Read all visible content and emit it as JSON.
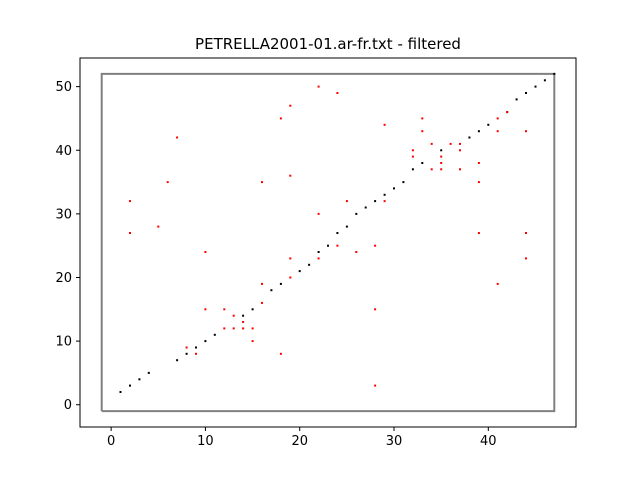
{
  "chart_data": {
    "type": "scatter",
    "title": "PETRELLA2001-01.ar-fr.txt - filtered",
    "xlabel": "",
    "ylabel": "",
    "xlim": [
      -3.3,
      49.3
    ],
    "ylim": [
      -3.5,
      54.5
    ],
    "xticks": [
      0,
      10,
      20,
      30,
      40
    ],
    "yticks": [
      0,
      10,
      20,
      30,
      40,
      50
    ],
    "grid": false,
    "legend": "none",
    "box": {
      "x": [
        -1,
        47
      ],
      "y": [
        -1,
        52
      ],
      "color": "#808080"
    },
    "series": [
      {
        "color": "#000000",
        "points": [
          [
            1,
            2
          ],
          [
            2,
            3
          ],
          [
            3,
            4
          ],
          [
            4,
            5
          ],
          [
            7,
            7
          ],
          [
            8,
            8
          ],
          [
            9,
            9
          ],
          [
            10,
            10
          ],
          [
            11,
            11
          ],
          [
            14,
            14
          ],
          [
            15,
            15
          ],
          [
            17,
            18
          ],
          [
            18,
            19
          ],
          [
            20,
            21
          ],
          [
            21,
            22
          ],
          [
            22,
            24
          ],
          [
            23,
            25
          ],
          [
            24,
            27
          ],
          [
            25,
            28
          ],
          [
            26,
            30
          ],
          [
            27,
            31
          ],
          [
            28,
            32
          ],
          [
            29,
            33
          ],
          [
            30,
            34
          ],
          [
            31,
            35
          ],
          [
            32,
            37
          ],
          [
            33,
            38
          ],
          [
            35,
            40
          ],
          [
            38,
            42
          ],
          [
            39,
            43
          ],
          [
            40,
            44
          ],
          [
            42,
            46
          ],
          [
            43,
            48
          ],
          [
            44,
            49
          ],
          [
            45,
            50
          ],
          [
            46,
            51
          ],
          [
            47,
            52
          ]
        ]
      },
      {
        "color": "#ff0000",
        "points": [
          [
            2,
            27
          ],
          [
            2,
            32
          ],
          [
            5,
            28
          ],
          [
            6,
            35
          ],
          [
            7,
            42
          ],
          [
            8,
            9
          ],
          [
            9,
            8
          ],
          [
            10,
            15
          ],
          [
            10,
            24
          ],
          [
            12,
            12
          ],
          [
            12,
            15
          ],
          [
            13,
            12
          ],
          [
            13,
            14
          ],
          [
            14,
            12
          ],
          [
            14,
            13
          ],
          [
            15,
            10
          ],
          [
            15,
            12
          ],
          [
            16,
            16
          ],
          [
            16,
            19
          ],
          [
            16,
            35
          ],
          [
            18,
            8
          ],
          [
            18,
            45
          ],
          [
            19,
            20
          ],
          [
            19,
            23
          ],
          [
            19,
            36
          ],
          [
            19,
            47
          ],
          [
            22,
            23
          ],
          [
            22,
            30
          ],
          [
            22,
            50
          ],
          [
            24,
            25
          ],
          [
            24,
            49
          ],
          [
            25,
            32
          ],
          [
            26,
            24
          ],
          [
            28,
            3
          ],
          [
            28,
            15
          ],
          [
            28,
            25
          ],
          [
            29,
            32
          ],
          [
            29,
            44
          ],
          [
            32,
            39
          ],
          [
            32,
            40
          ],
          [
            33,
            43
          ],
          [
            33,
            45
          ],
          [
            34,
            37
          ],
          [
            34,
            41
          ],
          [
            35,
            37
          ],
          [
            35,
            38
          ],
          [
            35,
            39
          ],
          [
            36,
            41
          ],
          [
            37,
            37
          ],
          [
            37,
            40
          ],
          [
            37,
            41
          ],
          [
            39,
            27
          ],
          [
            39,
            35
          ],
          [
            39,
            38
          ],
          [
            41,
            19
          ],
          [
            41,
            43
          ],
          [
            41,
            45
          ],
          [
            42,
            46
          ],
          [
            44,
            23
          ],
          [
            44,
            27
          ],
          [
            44,
            43
          ]
        ]
      }
    ]
  }
}
